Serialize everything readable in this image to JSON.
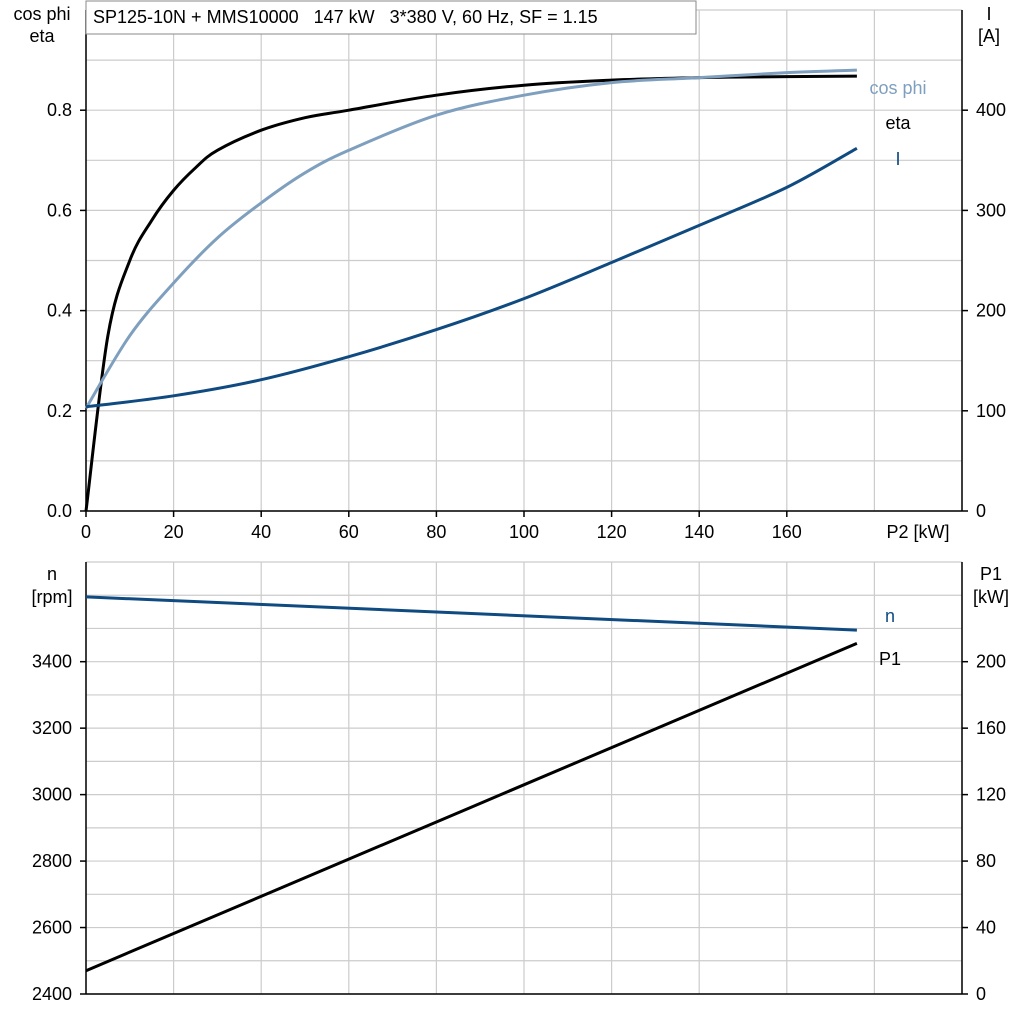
{
  "chart_data": [
    {
      "type": "line",
      "title": "SP125-10N + MMS10000   147 kW   3*380 V, 60 Hz, SF = 1.15",
      "xlabel": "P2 [kW]",
      "xlim": [
        0,
        200
      ],
      "x_ticks": [
        "0",
        "20",
        "40",
        "60",
        "80",
        "100",
        "120",
        "140",
        "160"
      ],
      "ylabel_left": [
        "cos phi",
        "eta"
      ],
      "ylim_left": [
        0,
        1
      ],
      "y_ticks_left": [
        "0.0",
        "0.2",
        "0.4",
        "0.6",
        "0.8"
      ],
      "ylabel_right": [
        "I",
        "[A]"
      ],
      "ylim_right": [
        0,
        500
      ],
      "y_ticks_right": [
        "0",
        "100",
        "200",
        "300",
        "400"
      ],
      "grid": true,
      "series": [
        {
          "name": "eta",
          "axis": "left",
          "color": "#000000",
          "x": [
            0,
            5,
            10,
            15,
            20,
            25,
            30,
            40,
            50,
            60,
            80,
            100,
            120,
            140,
            160,
            176
          ],
          "y": [
            0.0,
            0.35,
            0.5,
            0.58,
            0.64,
            0.685,
            0.72,
            0.76,
            0.785,
            0.8,
            0.83,
            0.85,
            0.86,
            0.865,
            0.867,
            0.868
          ]
        },
        {
          "name": "cos phi",
          "axis": "left",
          "color": "#7f9fbf",
          "x": [
            0,
            10,
            20,
            30,
            40,
            50,
            60,
            80,
            100,
            120,
            140,
            160,
            176
          ],
          "y": [
            0.205,
            0.35,
            0.455,
            0.545,
            0.615,
            0.675,
            0.72,
            0.79,
            0.83,
            0.855,
            0.865,
            0.875,
            0.88
          ]
        },
        {
          "name": "I",
          "axis": "right",
          "color": "#0f4a80",
          "x": [
            0,
            20,
            40,
            60,
            80,
            100,
            120,
            140,
            160,
            176
          ],
          "y": [
            104,
            115,
            131,
            154,
            181,
            212,
            248,
            285,
            323,
            362
          ]
        }
      ]
    },
    {
      "type": "line",
      "xlim": [
        0,
        200
      ],
      "ylabel_left": [
        "n",
        "[rpm]"
      ],
      "ylim_left": [
        2400,
        3700
      ],
      "y_ticks_left": [
        "2400",
        "2600",
        "2800",
        "3000",
        "3200",
        "3400"
      ],
      "ylabel_right": [
        "P1",
        "[kW]"
      ],
      "ylim_right": [
        0,
        260
      ],
      "y_ticks_right": [
        "0",
        "40",
        "80",
        "120",
        "160",
        "200"
      ],
      "grid": true,
      "series": [
        {
          "name": "n",
          "axis": "left",
          "color": "#0f4a80",
          "x": [
            0,
            176
          ],
          "y": [
            3595,
            3495
          ]
        },
        {
          "name": "P1",
          "axis": "right",
          "color": "#000000",
          "x": [
            0,
            176
          ],
          "y": [
            14,
            211
          ]
        }
      ]
    }
  ]
}
